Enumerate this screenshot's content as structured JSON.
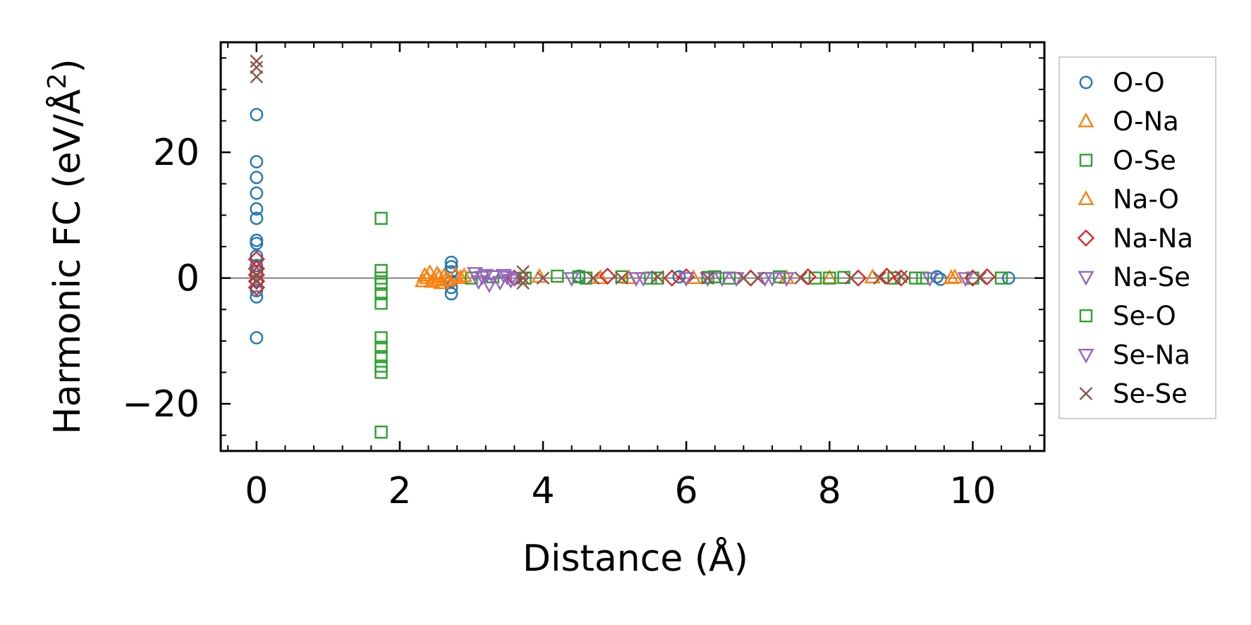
{
  "chart_data": {
    "type": "scatter",
    "title": "",
    "xlabel": "Distance (Å)",
    "ylabel": "Harmonic FC (eV/Å²)",
    "ylabel_parts": {
      "main": "Harmonic FC (eV/Å",
      "sup": "2",
      "close": ")"
    },
    "xlim": [
      -0.5,
      11.0
    ],
    "ylim": [
      -27.5,
      37.5
    ],
    "xticks": [
      0,
      2,
      4,
      6,
      8,
      10
    ],
    "xtick_labels": [
      "0",
      "2",
      "4",
      "6",
      "8",
      "10"
    ],
    "yticks": [
      -20,
      0,
      20
    ],
    "ytick_labels": [
      "−20",
      "0",
      "20"
    ],
    "grid": false,
    "legend_position": "outside-right",
    "zero_line": {
      "y": 0,
      "color": "#808080"
    },
    "series": [
      {
        "name": "O-O",
        "marker": "circle",
        "color": "#1f77b4",
        "points": [
          [
            0,
            26
          ],
          [
            0,
            18.5
          ],
          [
            0,
            16
          ],
          [
            0,
            13.5
          ],
          [
            0,
            11
          ],
          [
            0,
            9.5
          ],
          [
            0,
            6
          ],
          [
            0,
            5.5
          ],
          [
            0,
            3.5
          ],
          [
            0,
            2
          ],
          [
            0,
            1
          ],
          [
            0,
            -0.5
          ],
          [
            0,
            -2
          ],
          [
            0,
            -3
          ],
          [
            0,
            -9.5
          ],
          [
            2.72,
            2.5
          ],
          [
            2.72,
            1.8
          ],
          [
            2.72,
            1
          ],
          [
            2.72,
            -0.5
          ],
          [
            2.72,
            -1.5
          ],
          [
            2.72,
            -2.5
          ],
          [
            4.5,
            0.3
          ],
          [
            5.9,
            0.2
          ],
          [
            9.5,
            0.2
          ],
          [
            9.55,
            -0.2
          ],
          [
            10.5,
            0
          ]
        ]
      },
      {
        "name": "O-Na",
        "marker": "triangle-up",
        "color": "#ff7f0e",
        "points": [
          [
            2.32,
            -0.5
          ],
          [
            2.38,
            0
          ],
          [
            2.42,
            0.8
          ],
          [
            2.48,
            -0.3
          ],
          [
            2.52,
            0.6
          ],
          [
            2.58,
            -0.8
          ],
          [
            2.62,
            0.3
          ],
          [
            2.68,
            -0.4
          ],
          [
            2.78,
            0.5
          ],
          [
            2.85,
            0
          ],
          [
            3.95,
            0.2
          ],
          [
            4.8,
            0
          ],
          [
            6.1,
            0
          ],
          [
            7.4,
            0
          ],
          [
            8.6,
            0.1
          ],
          [
            9.7,
            0
          ]
        ]
      },
      {
        "name": "O-Se",
        "marker": "square",
        "color": "#2ca02c",
        "points": [
          [
            1.74,
            9.5
          ],
          [
            1.74,
            1.2
          ],
          [
            1.74,
            0
          ],
          [
            1.74,
            -1
          ],
          [
            1.74,
            -2.5
          ],
          [
            1.74,
            -4
          ],
          [
            1.74,
            -9.5
          ],
          [
            1.74,
            -11
          ],
          [
            1.74,
            -12.5
          ],
          [
            1.74,
            -14
          ],
          [
            1.74,
            -15
          ],
          [
            1.74,
            -24.5
          ],
          [
            3.0,
            0
          ],
          [
            3.3,
            0.2
          ],
          [
            4.2,
            0.3
          ],
          [
            4.6,
            0
          ],
          [
            5.1,
            0.2
          ],
          [
            5.5,
            0
          ],
          [
            6.3,
            0.1
          ],
          [
            6.6,
            0
          ],
          [
            7.3,
            0.2
          ],
          [
            7.8,
            0
          ],
          [
            8.2,
            0.1
          ],
          [
            8.9,
            0
          ],
          [
            9.3,
            0
          ],
          [
            10.0,
            0
          ],
          [
            10.4,
            0
          ]
        ]
      },
      {
        "name": "Na-O",
        "marker": "triangle-up",
        "color": "#ff7f0e",
        "points": [
          [
            2.35,
            0.4
          ],
          [
            2.45,
            -0.6
          ],
          [
            2.55,
            0.2
          ],
          [
            2.65,
            -0.2
          ],
          [
            2.9,
            0.3
          ],
          [
            5.2,
            0
          ],
          [
            8.0,
            0
          ],
          [
            9.75,
            0.1
          ]
        ]
      },
      {
        "name": "Na-Na",
        "marker": "diamond",
        "color": "#d62728",
        "points": [
          [
            0,
            3
          ],
          [
            0,
            1.5
          ],
          [
            0,
            0.5
          ],
          [
            0,
            -0.5
          ],
          [
            0,
            -1.5
          ],
          [
            3.6,
            0
          ],
          [
            4.9,
            0.3
          ],
          [
            5.8,
            0
          ],
          [
            6.0,
            0.2
          ],
          [
            6.9,
            0
          ],
          [
            7.7,
            0.2
          ],
          [
            8.4,
            0
          ],
          [
            8.8,
            0.3
          ],
          [
            9.0,
            0
          ],
          [
            10.0,
            0
          ],
          [
            10.2,
            0.2
          ]
        ]
      },
      {
        "name": "Na-Se",
        "marker": "triangle-down",
        "color": "#9467bd",
        "points": [
          [
            3.05,
            0.8
          ],
          [
            3.1,
            -0.5
          ],
          [
            3.2,
            0.5
          ],
          [
            3.25,
            -1
          ],
          [
            3.3,
            0.3
          ],
          [
            3.4,
            -0.6
          ],
          [
            3.5,
            0.2
          ],
          [
            3.6,
            0
          ],
          [
            4.4,
            0
          ],
          [
            5.3,
            0
          ],
          [
            6.0,
            0
          ],
          [
            6.3,
            0
          ],
          [
            6.5,
            0
          ],
          [
            7.1,
            0
          ],
          [
            7.4,
            0
          ],
          [
            9.4,
            0
          ],
          [
            9.9,
            0
          ]
        ]
      },
      {
        "name": "Se-O",
        "marker": "square",
        "color": "#2ca02c",
        "points": [
          [
            3.75,
            0
          ],
          [
            4.5,
            0.2
          ],
          [
            5.6,
            0
          ],
          [
            6.4,
            0.2
          ],
          [
            8.0,
            0
          ],
          [
            9.2,
            0
          ]
        ]
      },
      {
        "name": "Se-Na",
        "marker": "triangle-down",
        "color": "#9467bd",
        "points": [
          [
            3.15,
            0.2
          ],
          [
            3.45,
            0.5
          ],
          [
            3.55,
            -0.3
          ],
          [
            5.4,
            0
          ],
          [
            6.7,
            0
          ],
          [
            7.2,
            0
          ]
        ]
      },
      {
        "name": "Se-Se",
        "marker": "x",
        "color": "#8c564b",
        "points": [
          [
            0,
            34.5
          ],
          [
            0,
            33.5
          ],
          [
            0,
            32
          ],
          [
            0,
            0.5
          ],
          [
            0,
            -0.5
          ],
          [
            3.72,
            1
          ],
          [
            3.72,
            0
          ],
          [
            3.72,
            -0.8
          ],
          [
            4.0,
            0
          ],
          [
            4.7,
            0
          ],
          [
            5.1,
            0
          ],
          [
            5.6,
            0.2
          ],
          [
            6.3,
            0
          ],
          [
            6.8,
            0
          ],
          [
            7.0,
            0
          ],
          [
            7.6,
            0
          ],
          [
            8.3,
            0
          ],
          [
            8.7,
            0
          ],
          [
            9.0,
            0.2
          ],
          [
            10.1,
            0
          ]
        ]
      }
    ]
  }
}
